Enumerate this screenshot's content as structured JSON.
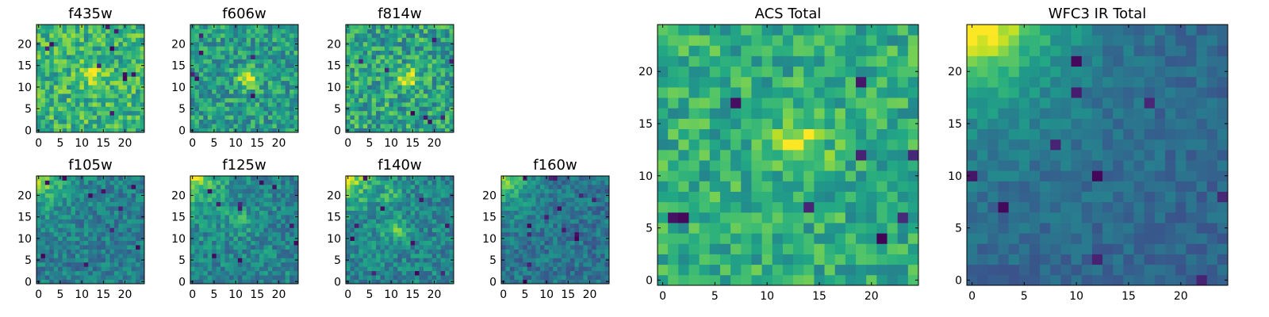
{
  "chart_data": [
    {
      "id": "f435w",
      "type": "heatmap",
      "title": "f435w",
      "grid_size": 25,
      "colormap": "viridis",
      "vmin": 0,
      "vmax": 1,
      "xticks": [
        "0",
        "5",
        "10",
        "15",
        "20"
      ],
      "yticks": [
        "0",
        "5",
        "10",
        "15",
        "20"
      ],
      "blobs": [
        {
          "x": 13,
          "y": 13,
          "sigma": 2.0,
          "amp": 0.25
        }
      ],
      "gradient": "none",
      "base": 0.65,
      "noise": 0.42,
      "dark_spots": 10,
      "seed": 11
    },
    {
      "id": "f606w",
      "type": "heatmap",
      "title": "f606w",
      "grid_size": 25,
      "colormap": "viridis",
      "vmin": 0,
      "vmax": 1,
      "xticks": [
        "0",
        "5",
        "10",
        "15",
        "20"
      ],
      "yticks": [
        "0",
        "5",
        "10",
        "15",
        "20"
      ],
      "blobs": [
        {
          "x": 13,
          "y": 12,
          "sigma": 1.6,
          "amp": 0.45
        }
      ],
      "gradient": "none",
      "base": 0.55,
      "noise": 0.4,
      "dark_spots": 6,
      "seed": 23
    },
    {
      "id": "f814w",
      "type": "heatmap",
      "title": "f814w",
      "grid_size": 25,
      "colormap": "viridis",
      "vmin": 0,
      "vmax": 1,
      "xticks": [
        "0",
        "5",
        "10",
        "15",
        "20"
      ],
      "yticks": [
        "0",
        "5",
        "10",
        "15",
        "20"
      ],
      "blobs": [
        {
          "x": 14,
          "y": 12,
          "sigma": 1.6,
          "amp": 0.4
        }
      ],
      "gradient": "none",
      "base": 0.58,
      "noise": 0.45,
      "dark_spots": 8,
      "seed": 37
    },
    {
      "id": "f105w",
      "type": "heatmap",
      "title": "f105w",
      "grid_size": 25,
      "colormap": "viridis",
      "vmin": 0,
      "vmax": 1,
      "xticks": [
        "0",
        "5",
        "10",
        "15",
        "20"
      ],
      "yticks": [
        "0",
        "5",
        "10",
        "15",
        "20"
      ],
      "blobs": [],
      "gradient": "top-left",
      "base": 0.42,
      "noise": 0.3,
      "dark_spots": 10,
      "seed": 41
    },
    {
      "id": "f125w",
      "type": "heatmap",
      "title": "f125w",
      "grid_size": 25,
      "colormap": "viridis",
      "vmin": 0,
      "vmax": 1,
      "xticks": [
        "0",
        "5",
        "10",
        "15",
        "20"
      ],
      "yticks": [
        "0",
        "5",
        "10",
        "15",
        "20"
      ],
      "blobs": [
        {
          "x": 11,
          "y": 14,
          "sigma": 2.0,
          "amp": 0.15
        }
      ],
      "gradient": "top-left",
      "base": 0.45,
      "noise": 0.32,
      "dark_spots": 10,
      "seed": 53
    },
    {
      "id": "f140w",
      "type": "heatmap",
      "title": "f140w",
      "grid_size": 25,
      "colormap": "viridis",
      "vmin": 0,
      "vmax": 1,
      "xticks": [
        "0",
        "5",
        "10",
        "15",
        "20"
      ],
      "yticks": [
        "0",
        "5",
        "10",
        "15",
        "20"
      ],
      "blobs": [
        {
          "x": 11,
          "y": 12,
          "sigma": 2.0,
          "amp": 0.25
        },
        {
          "x": 10,
          "y": 20,
          "sigma": 1.5,
          "amp": 0.15
        }
      ],
      "gradient": "top-left",
      "base": 0.45,
      "noise": 0.32,
      "dark_spots": 10,
      "seed": 67
    },
    {
      "id": "f160w",
      "type": "heatmap",
      "title": "f160w",
      "grid_size": 25,
      "colormap": "viridis",
      "vmin": 0,
      "vmax": 1,
      "xticks": [
        "0",
        "5",
        "10",
        "15",
        "20"
      ],
      "yticks": [
        "0",
        "5",
        "10",
        "15",
        "20"
      ],
      "blobs": [],
      "gradient": "top-left",
      "base": 0.38,
      "noise": 0.28,
      "dark_spots": 14,
      "seed": 71
    },
    {
      "id": "acs-total",
      "type": "heatmap",
      "title": "ACS Total",
      "grid_size": 25,
      "colormap": "viridis",
      "vmin": 0,
      "vmax": 1,
      "xticks": [
        "0",
        "5",
        "10",
        "15",
        "20"
      ],
      "yticks": [
        "0",
        "5",
        "10",
        "15",
        "20"
      ],
      "blobs": [
        {
          "x": 13,
          "y": 13,
          "sigma": 1.7,
          "amp": 0.35
        }
      ],
      "gradient": "none",
      "base": 0.62,
      "noise": 0.35,
      "dark_spots": 9,
      "seed": 83
    },
    {
      "id": "wfc3-ir-total",
      "type": "heatmap",
      "title": "WFC3 IR Total",
      "grid_size": 25,
      "colormap": "viridis",
      "vmin": 0,
      "vmax": 1,
      "xticks": [
        "0",
        "5",
        "10",
        "15",
        "20"
      ],
      "yticks": [
        "0",
        "5",
        "10",
        "15",
        "20"
      ],
      "blobs": [],
      "gradient": "top-left-strong",
      "base": 0.32,
      "noise": 0.16,
      "dark_spots": 10,
      "seed": 97
    }
  ]
}
